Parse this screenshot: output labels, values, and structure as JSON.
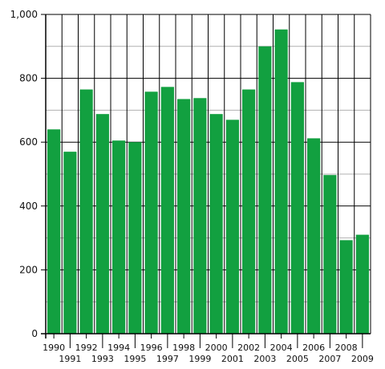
{
  "chart_data": {
    "type": "bar",
    "title": "",
    "xlabel": "",
    "ylabel": "",
    "categories": [
      "1990",
      "1991",
      "1992",
      "1993",
      "1994",
      "1995",
      "1996",
      "1997",
      "1998",
      "1999",
      "2000",
      "2001",
      "2002",
      "2003",
      "2004",
      "2005",
      "2006",
      "2007",
      "2008",
      "2009"
    ],
    "values": [
      640,
      570,
      765,
      688,
      605,
      600,
      758,
      773,
      735,
      738,
      688,
      670,
      765,
      900,
      953,
      788,
      612,
      497,
      293,
      310
    ],
    "ylim": [
      0,
      1000
    ],
    "yticks": [
      0,
      200,
      400,
      600,
      800,
      1000
    ],
    "ytick_labels": [
      "0",
      "200",
      "400",
      "600",
      "800",
      "1,000"
    ],
    "grid": {
      "major_every": 200,
      "minor_every": 100,
      "vertical_lines": true
    },
    "colors": {
      "bar": "#12a040",
      "grid_major": "#000000",
      "grid_minor": "#b0b0b0",
      "axis": "#000000"
    }
  }
}
